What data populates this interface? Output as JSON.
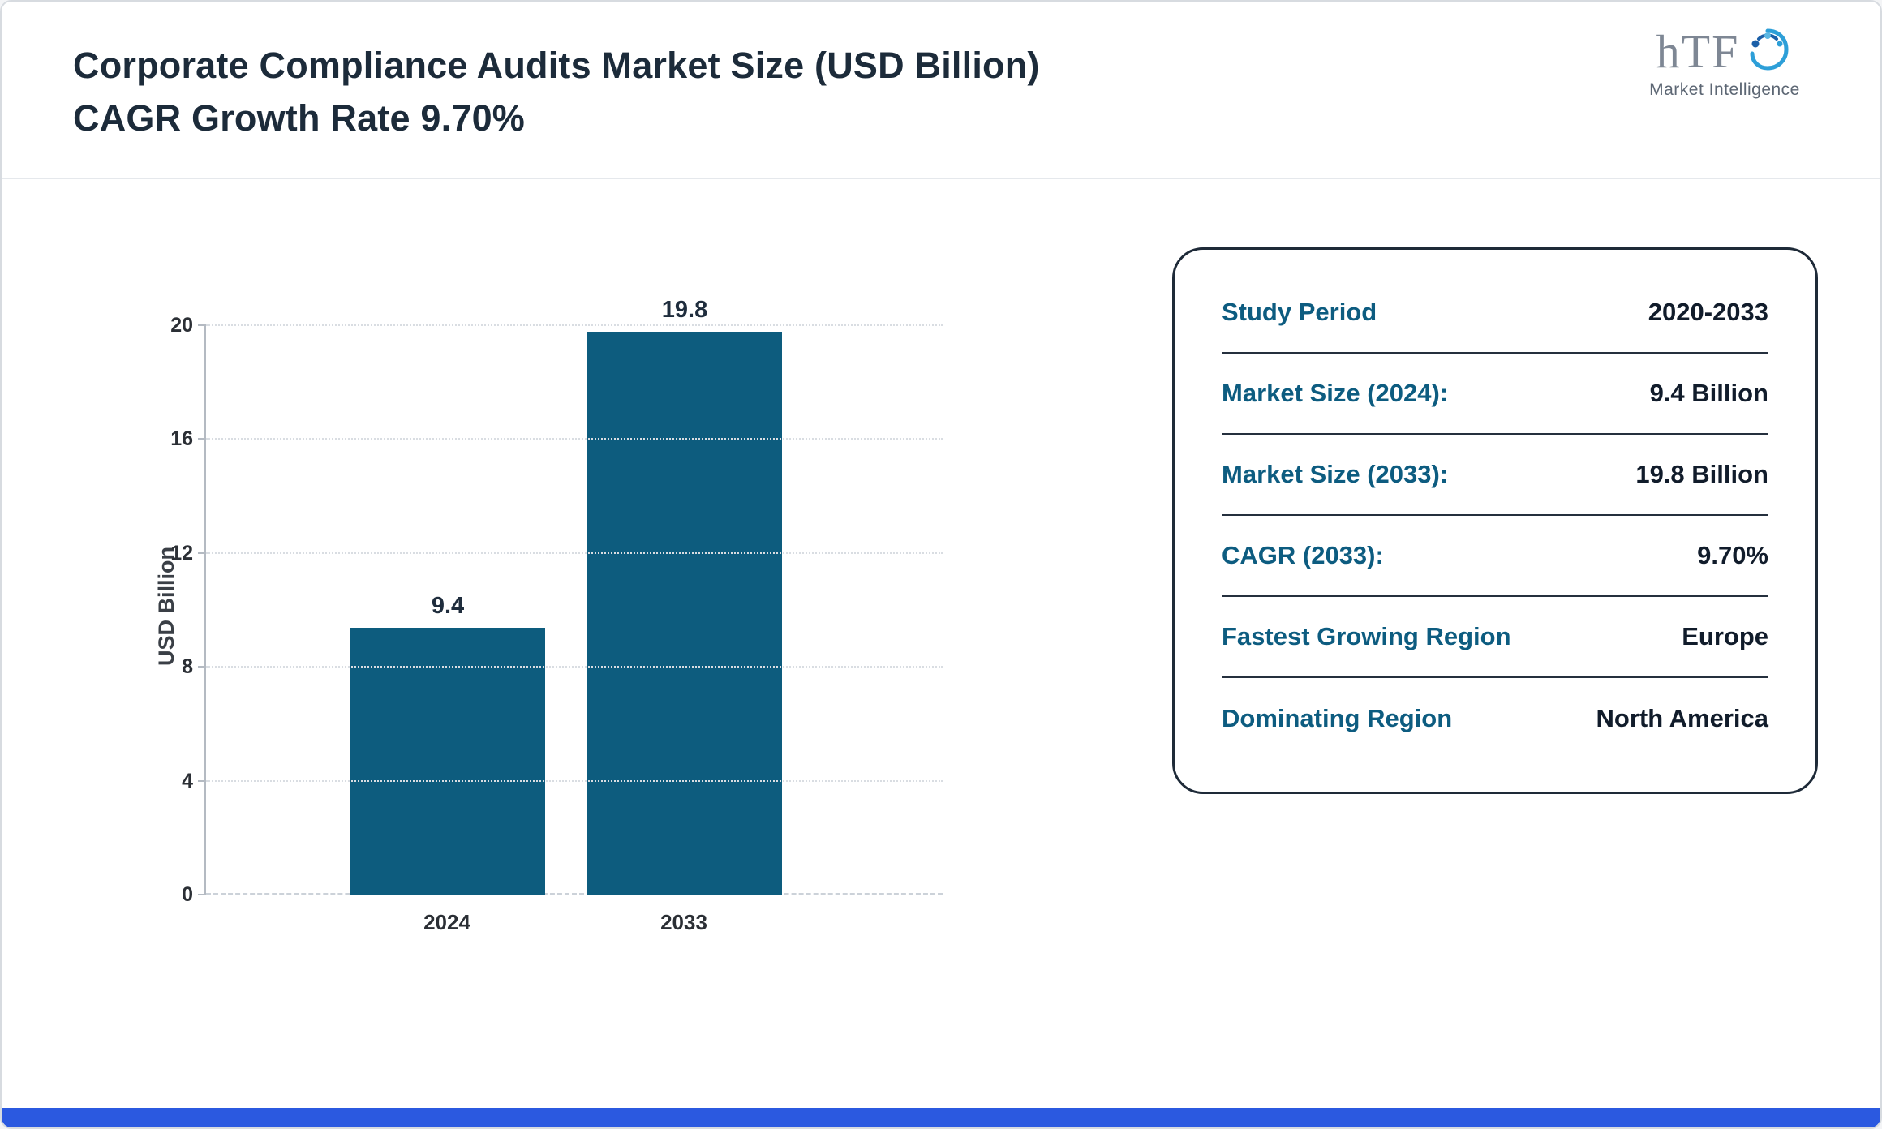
{
  "header": {
    "title": "Corporate Compliance Audits Market Size (USD Billion) CAGR Growth Rate 9.70%"
  },
  "logo": {
    "text": "hTF",
    "subtext": "Market Intelligence"
  },
  "chart_data": {
    "type": "bar",
    "categories": [
      "2024",
      "2033"
    ],
    "values": [
      9.4,
      19.8
    ],
    "bar_labels": [
      "9.4",
      "19.8"
    ],
    "title": "",
    "xlabel": "",
    "ylabel": "USD Billion",
    "ylim": [
      0,
      20
    ],
    "yticks": [
      0,
      4,
      8,
      12,
      16,
      20
    ],
    "grid": true,
    "legend": false,
    "bar_color": "#0d5c7e"
  },
  "stats": {
    "rows": [
      {
        "label": "Study Period",
        "value": "2020-2033"
      },
      {
        "label": "Market Size (2024):",
        "value": "9.4 Billion"
      },
      {
        "label": "Market Size (2033):",
        "value": "19.8 Billion"
      },
      {
        "label": "CAGR (2033):",
        "value": "9.70%"
      },
      {
        "label": "Fastest Growing Region",
        "value": "Europe"
      },
      {
        "label": "Dominating Region",
        "value": "North America"
      }
    ]
  },
  "colors": {
    "accent_teal": "#0d5c7e",
    "title_navy": "#1c2b3a",
    "bottom_strip_blue": "#2b59e0"
  }
}
